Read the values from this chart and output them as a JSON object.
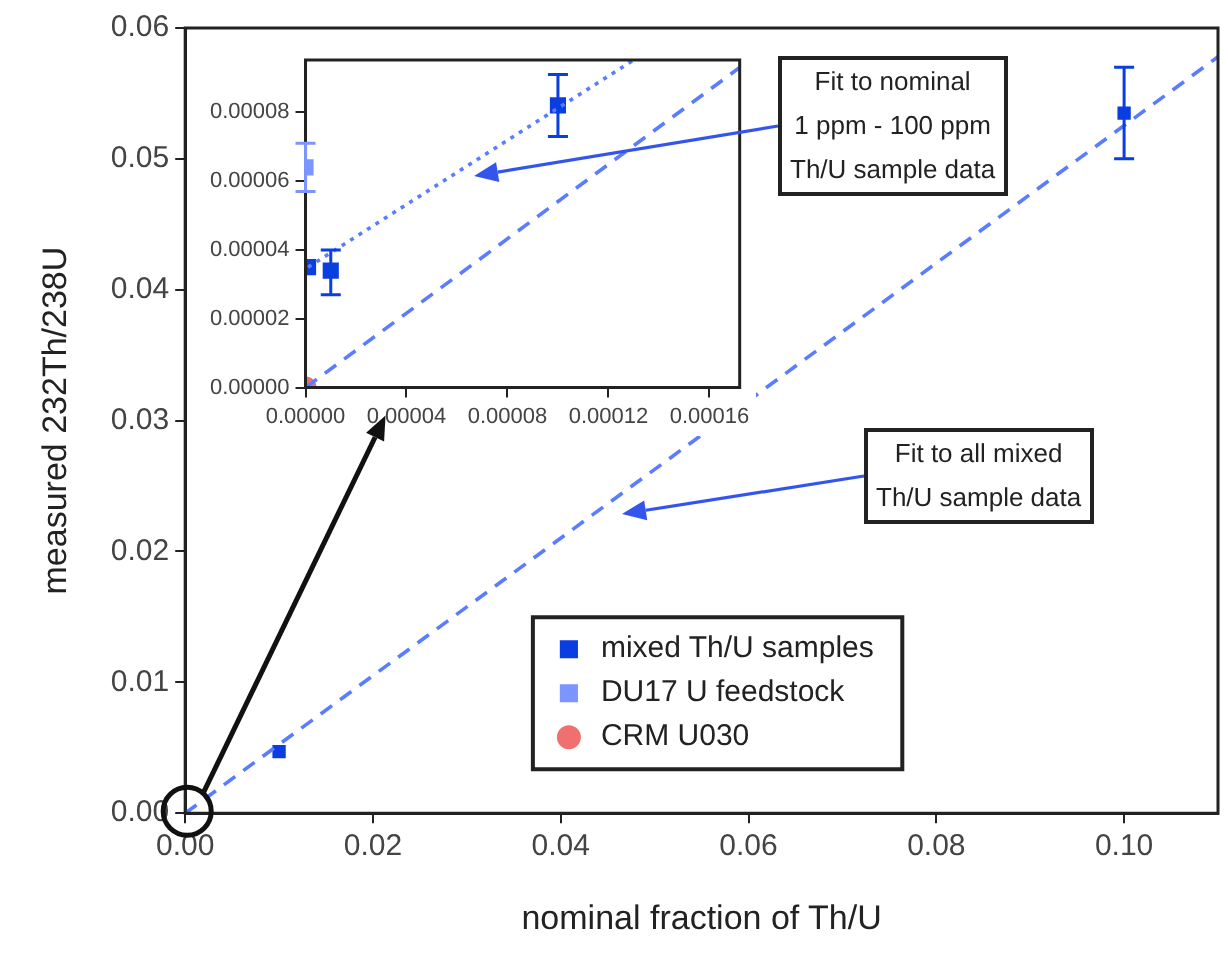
{
  "chart_data": [
    {
      "type": "scatter",
      "xlabel": "nominal fraction of Th/U",
      "ylabel": "measured 232Th/238U",
      "xlim": [
        0,
        0.11
      ],
      "ylim": [
        0,
        0.06
      ],
      "xticks": [
        {
          "value": 0,
          "label": "0.00"
        },
        {
          "value": 0.02,
          "label": "0.02"
        },
        {
          "value": 0.04,
          "label": "0.04"
        },
        {
          "value": 0.06,
          "label": "0.06"
        },
        {
          "value": 0.08,
          "label": "0.08"
        },
        {
          "value": 0.1,
          "label": "0.10"
        }
      ],
      "yticks": [
        {
          "value": 0,
          "label": "0.00"
        },
        {
          "value": 0.01,
          "label": "0.01"
        },
        {
          "value": 0.02,
          "label": "0.02"
        },
        {
          "value": 0.03,
          "label": "0.03"
        },
        {
          "value": 0.04,
          "label": "0.04"
        },
        {
          "value": 0.05,
          "label": "0.05"
        },
        {
          "value": 0.06,
          "label": "0.06"
        }
      ],
      "grid": false,
      "legend": "bottom",
      "series": [
        {
          "type": "line",
          "color": "#5a7cff",
          "line_style": "dashed",
          "x": [
            0,
            0.11
          ],
          "values": [
            0,
            0.0578
          ]
        },
        {
          "name": "mixed Th/U samples",
          "color": "#0a3ee0",
          "marker": "square",
          "x": [
            0.01,
            0.1
          ],
          "values": [
            0.0047,
            0.0535
          ],
          "errors": [
            null,
            [
              0.05,
              0.057
            ]
          ]
        },
        {
          "name": "DU17 U feedstock",
          "color": "#7d95ff",
          "marker": "square",
          "x": [
            null
          ],
          "values": [
            null
          ]
        },
        {
          "name": "CRM U030",
          "color": "#f07070",
          "marker": "circle",
          "x": [
            null
          ],
          "values": [
            null
          ]
        }
      ],
      "annotations": [
        "Fit to all mixed\nTh/U sample data"
      ]
    },
    {
      "type": "scatter",
      "xlim": [
        0,
        0.000172
      ],
      "ylim": [
        0,
        9.52e-05
      ],
      "xticks": [
        {
          "value": 0,
          "label": "0.00000"
        },
        {
          "value": 4e-05,
          "label": "0.00004"
        },
        {
          "value": 8e-05,
          "label": "0.00008"
        },
        {
          "value": 0.00012,
          "label": "0.00012"
        },
        {
          "value": 0.00016,
          "label": "0.00016"
        }
      ],
      "yticks": [
        {
          "value": 0,
          "label": "0.00000"
        },
        {
          "value": 2e-05,
          "label": "0.00002"
        },
        {
          "value": 4e-05,
          "label": "0.00004"
        },
        {
          "value": 6e-05,
          "label": "0.00006"
        },
        {
          "value": 8e-05,
          "label": "0.00008"
        }
      ],
      "grid": false,
      "series": [
        {
          "type": "line",
          "color": "#5a7cff",
          "line_style": "dashed",
          "x": [
            0,
            0.000172
          ],
          "values": [
            0,
            9.3e-05
          ]
        },
        {
          "type": "line",
          "color": "#5a7cff",
          "line_style": "dotted",
          "x": [
            1e-06,
            0.00013
          ],
          "values": [
            3.5e-05,
            9.52e-05
          ]
        },
        {
          "color": "#0a3ee0",
          "marker": "square",
          "x": [
            1e-06,
            1e-05,
            0.0001
          ],
          "values": [
            3.5e-05,
            3.4e-05,
            8.2e-05
          ],
          "errors": [
            null,
            [
              2.7e-05,
              4e-05
            ],
            [
              7.3e-05,
              9.1e-05
            ]
          ]
        },
        {
          "color": "#7d95ff",
          "marker": "square",
          "x": [
            0
          ],
          "values": [
            6.4e-05
          ],
          "errors": [
            [
              5.7e-05,
              7.1e-05
            ]
          ]
        },
        {
          "color": "#f07070",
          "marker": "circle",
          "x": [
            0
          ],
          "values": [
            0
          ]
        }
      ],
      "annotations": [
        "Fit to nominal\n1 ppm - 100 ppm\nTh/U sample data"
      ]
    }
  ]
}
